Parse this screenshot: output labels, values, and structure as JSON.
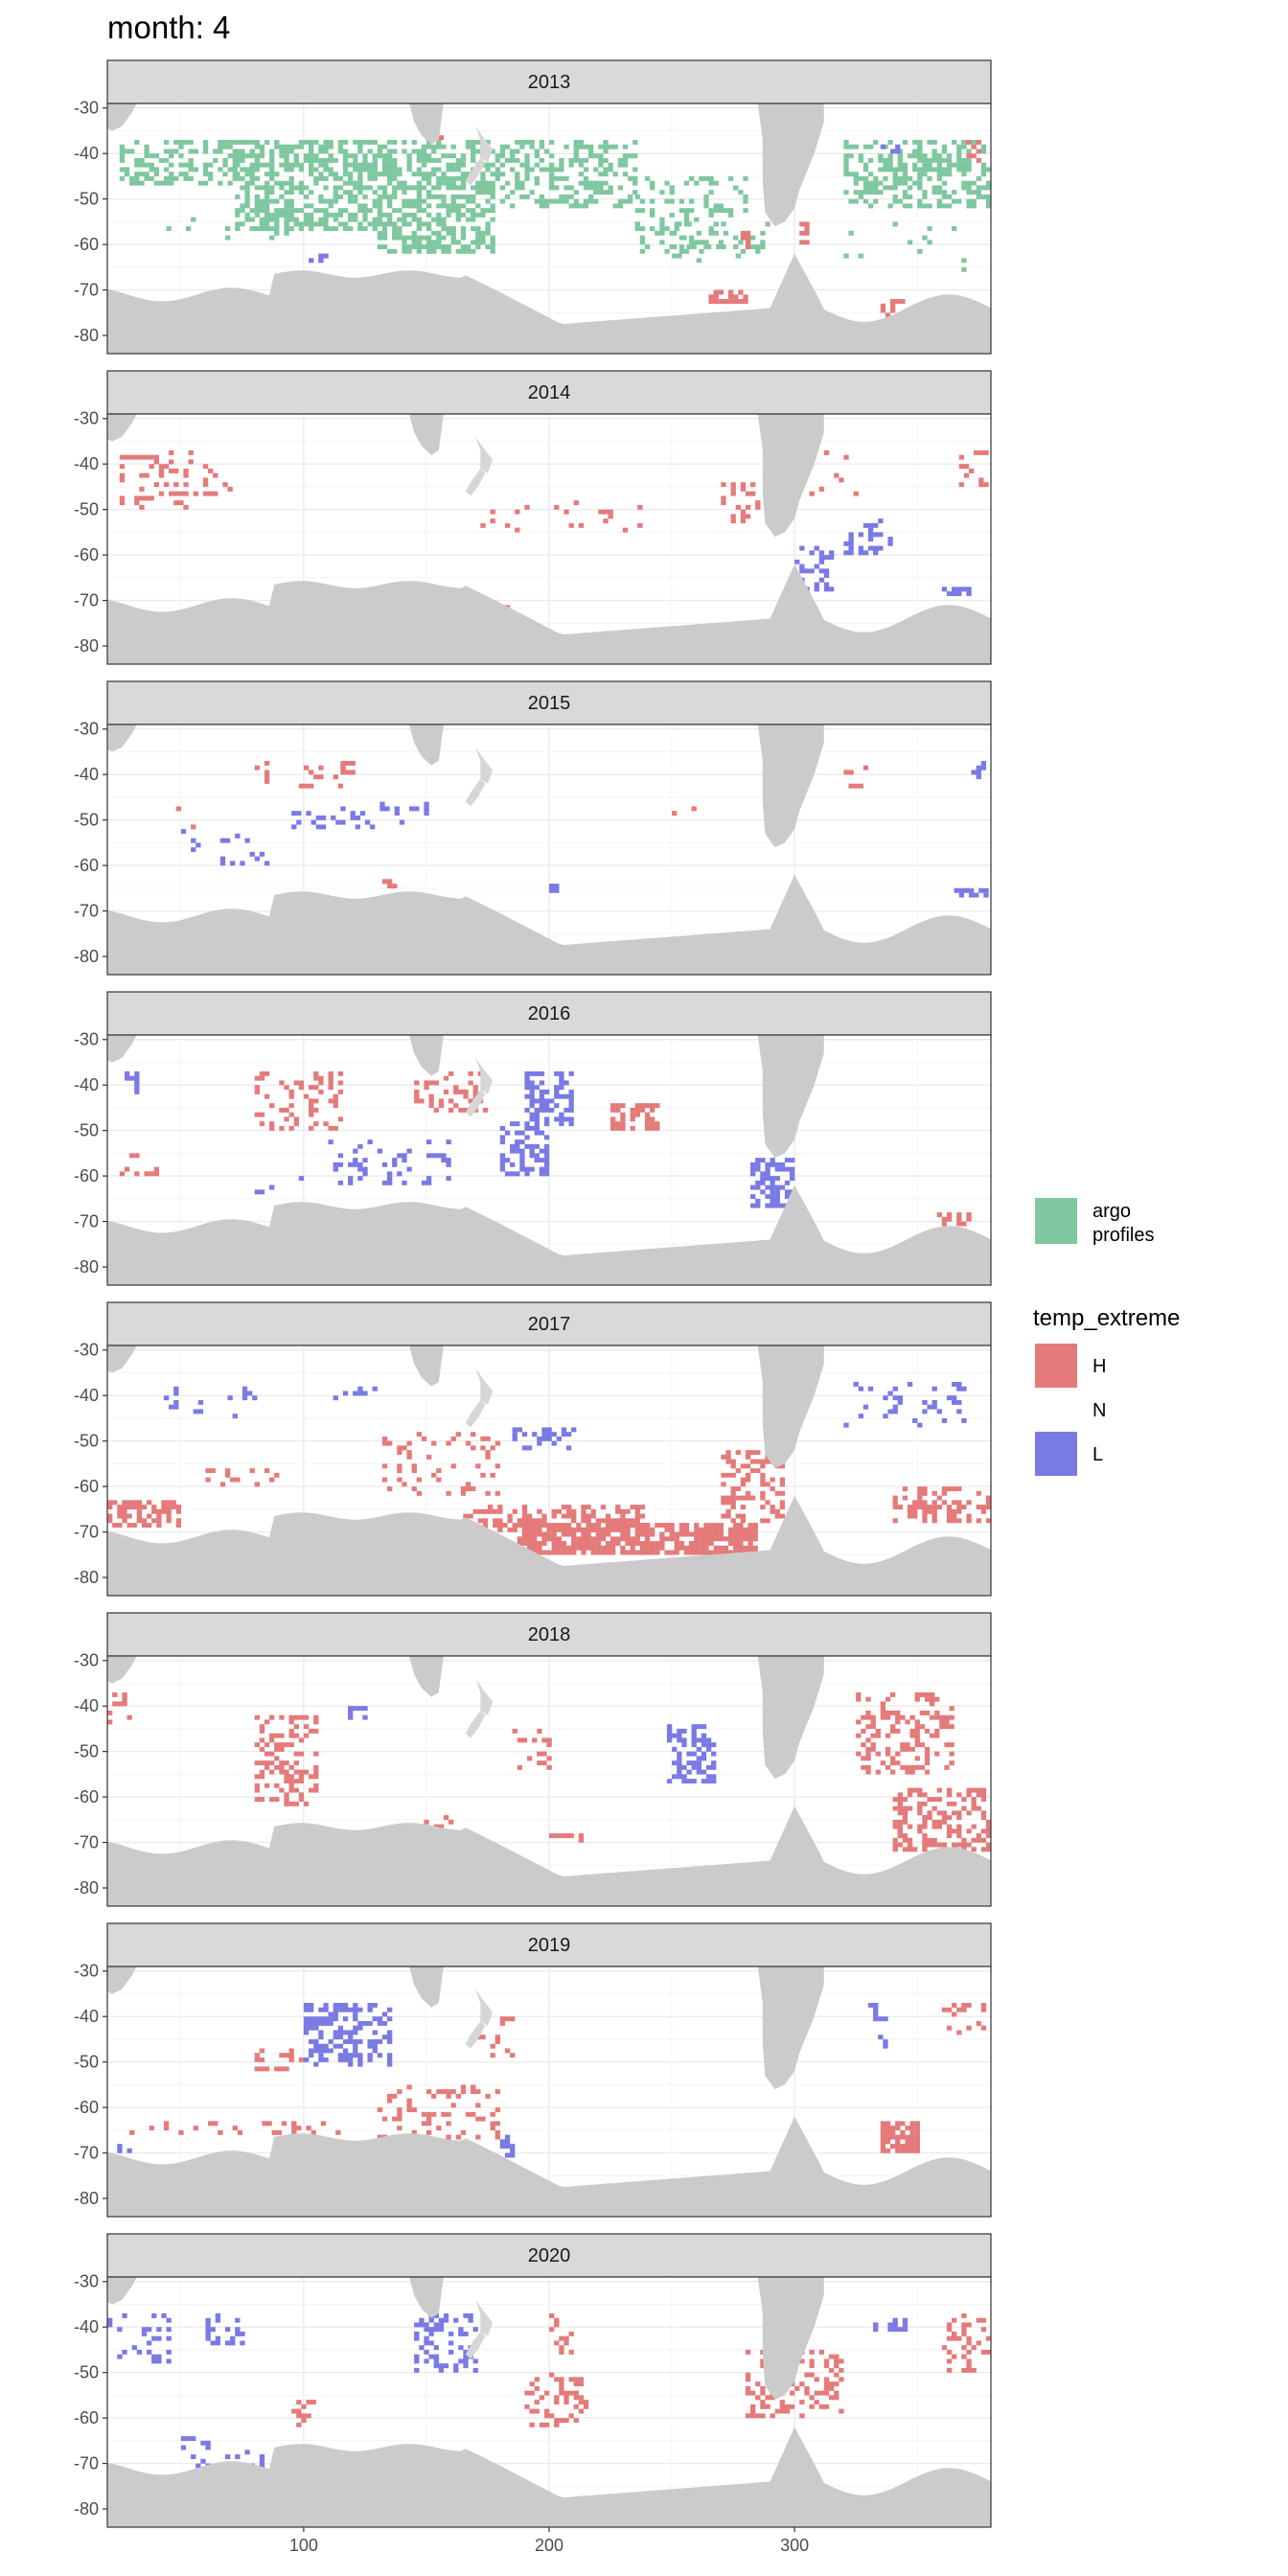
{
  "title": "month: 4",
  "chart_data": {
    "type": "heatmap",
    "title": "month: 4",
    "xlabel": "",
    "ylabel": "",
    "xlim": [
      20,
      380
    ],
    "ylim": [
      -84,
      -29
    ],
    "x_ticks": [
      "100",
      "200",
      "300"
    ],
    "x_tick_values": [
      100,
      200,
      300
    ],
    "y_ticks": [
      "-30",
      "-40",
      "-50",
      "-60",
      "-70",
      "-80"
    ],
    "y_tick_values": [
      -30,
      -40,
      -50,
      -60,
      -70,
      -80
    ],
    "grid": true,
    "facet_var": "year",
    "legend_position": "right",
    "colors": {
      "argo": "#7fc89f",
      "H": "#e57a7a",
      "L": "#7a7ae5",
      "land": "#cbcbcb"
    },
    "legend": {
      "fill": {
        "title": "",
        "entries": [
          {
            "key": "argo",
            "label": "argo\nprofiles",
            "color": "#7fc89f"
          }
        ]
      },
      "temp_extreme": {
        "title": "temp_extreme",
        "entries": [
          {
            "key": "H",
            "label": "H",
            "color": "#e57a7a"
          },
          {
            "key": "N",
            "label": "N",
            "color": null
          },
          {
            "key": "L",
            "label": "L",
            "color": "#7a7ae5"
          }
        ]
      }
    },
    "panels": [
      {
        "label": "2013",
        "argo": [
          [
            25,
            72,
            -47,
            -37,
            0.45
          ],
          [
            72,
            130,
            -57,
            -37,
            0.55
          ],
          [
            130,
            178,
            -62,
            -37,
            0.5
          ],
          [
            178,
            235,
            -52,
            -37,
            0.4
          ],
          [
            235,
            280,
            -62,
            -45,
            0.25
          ],
          [
            320,
            380,
            -52,
            -37,
            0.45
          ],
          [
            40,
            110,
            -60,
            -52,
            0.08
          ],
          [
            250,
            290,
            -64,
            -55,
            0.15
          ],
          [
            320,
            370,
            -66,
            -55,
            0.05
          ]
        ],
        "H": [
          [
            278,
            282,
            -61,
            -56,
            0.5
          ],
          [
            300,
            305,
            -60,
            -55,
            0.4
          ],
          [
            265,
            280,
            -73,
            -70,
            0.6
          ],
          [
            335,
            345,
            -78,
            -72,
            0.5
          ],
          [
            153,
            156,
            -38,
            -36,
            0.5
          ],
          [
            370,
            378,
            -42,
            -37,
            0.3
          ]
        ],
        "L": [
          [
            100,
            110,
            -64,
            -62,
            0.4
          ],
          [
            335,
            350,
            -40,
            -38,
            0.3
          ]
        ]
      },
      {
        "label": "2014",
        "argo": [],
        "H": [
          [
            25,
            55,
            -50,
            -37,
            0.3
          ],
          [
            55,
            70,
            -47,
            -40,
            0.2
          ],
          [
            270,
            285,
            -53,
            -44,
            0.3
          ],
          [
            300,
            330,
            -48,
            -37,
            0.1
          ],
          [
            170,
            250,
            -55,
            -48,
            0.06
          ],
          [
            180,
            185,
            -72,
            -70,
            0.6
          ],
          [
            162,
            168,
            -79,
            -76,
            0.4
          ],
          [
            367,
            378,
            -46,
            -37,
            0.2
          ]
        ],
        "L": [
          [
            320,
            340,
            -60,
            -52,
            0.25
          ],
          [
            300,
            315,
            -68,
            -58,
            0.35
          ],
          [
            360,
            372,
            -69,
            -67,
            0.4
          ]
        ]
      },
      {
        "label": "2015",
        "argo": [],
        "H": [
          [
            80,
            115,
            -43,
            -37,
            0.15
          ],
          [
            115,
            120,
            -40,
            -37,
            0.4
          ],
          [
            250,
            260,
            -49,
            -47,
            0.3
          ],
          [
            320,
            330,
            -43,
            -38,
            0.25
          ],
          [
            130,
            140,
            -65,
            -63,
            0.2
          ],
          [
            185,
            195,
            -79,
            -77,
            0.7
          ],
          [
            40,
            55,
            -53,
            -47,
            0.05
          ]
        ],
        "L": [
          [
            95,
            150,
            -52,
            -46,
            0.2
          ],
          [
            50,
            85,
            -60,
            -52,
            0.12
          ],
          [
            190,
            205,
            -66,
            -64,
            0.3
          ],
          [
            365,
            378,
            -67,
            -65,
            0.5
          ],
          [
            370,
            378,
            -41,
            -37,
            0.3
          ]
        ]
      },
      {
        "label": "2016",
        "argo": [],
        "H": [
          [
            80,
            115,
            -50,
            -37,
            0.3
          ],
          [
            145,
            175,
            -46,
            -37,
            0.3
          ],
          [
            225,
            245,
            -50,
            -44,
            0.6
          ],
          [
            25,
            40,
            -60,
            -55,
            0.2
          ],
          [
            358,
            372,
            -71,
            -68,
            0.5
          ],
          [
            195,
            200,
            -79,
            -77,
            0.6
          ]
        ],
        "L": [
          [
            190,
            210,
            -49,
            -37,
            0.5
          ],
          [
            180,
            200,
            -60,
            -48,
            0.5
          ],
          [
            110,
            160,
            -62,
            -52,
            0.25
          ],
          [
            282,
            300,
            -67,
            -56,
            0.55
          ],
          [
            25,
            40,
            -42,
            -37,
            0.2
          ],
          [
            80,
            100,
            -64,
            -60,
            0.2
          ]
        ],
        "_x": 0
      },
      {
        "label": "2017",
        "argo": [],
        "H": [
          [
            20,
            50,
            -69,
            -63,
            0.6
          ],
          [
            185,
            285,
            -75,
            -68,
            0.75
          ],
          [
            165,
            240,
            -70,
            -64,
            0.4
          ],
          [
            270,
            295,
            -68,
            -52,
            0.4
          ],
          [
            130,
            180,
            -62,
            -48,
            0.15
          ],
          [
            340,
            380,
            -68,
            -60,
            0.4
          ],
          [
            60,
            90,
            -60,
            -56,
            0.2
          ]
        ],
        "L": [
          [
            35,
            80,
            -45,
            -38,
            0.15
          ],
          [
            185,
            210,
            -52,
            -47,
            0.3
          ],
          [
            320,
            370,
            -47,
            -37,
            0.15
          ],
          [
            110,
            130,
            -42,
            -38,
            0.2
          ]
        ]
      },
      {
        "label": "2018",
        "argo": [],
        "H": [
          [
            80,
            105,
            -62,
            -42,
            0.35
          ],
          [
            325,
            365,
            -55,
            -37,
            0.3
          ],
          [
            340,
            380,
            -72,
            -58,
            0.45
          ],
          [
            185,
            200,
            -55,
            -45,
            0.25
          ],
          [
            145,
            160,
            -68,
            -64,
            0.3
          ],
          [
            200,
            215,
            -70,
            -68,
            0.5
          ],
          [
            165,
            170,
            -76,
            -74,
            0.6
          ],
          [
            20,
            30,
            -44,
            -37,
            0.2
          ]
        ],
        "L": [
          [
            248,
            268,
            -57,
            -44,
            0.5
          ],
          [
            118,
            125,
            -43,
            -40,
            0.4
          ]
        ]
      },
      {
        "label": "2019",
        "argo": [],
        "H": [
          [
            25,
            115,
            -66,
            -63,
            0.2
          ],
          [
            130,
            180,
            -67,
            -55,
            0.25
          ],
          [
            335,
            350,
            -70,
            -63,
            0.8
          ],
          [
            360,
            380,
            -45,
            -37,
            0.2
          ],
          [
            170,
            185,
            -50,
            -40,
            0.15
          ],
          [
            80,
            100,
            -52,
            -45,
            0.2
          ]
        ],
        "L": [
          [
            100,
            135,
            -51,
            -37,
            0.5
          ],
          [
            180,
            185,
            -71,
            -66,
            0.5
          ],
          [
            20,
            30,
            -71,
            -68,
            0.4
          ],
          [
            330,
            340,
            -47,
            -37,
            0.2
          ]
        ]
      },
      {
        "label": "2020",
        "argo": [],
        "H": [
          [
            190,
            215,
            -62,
            -50,
            0.35
          ],
          [
            200,
            210,
            -46,
            -37,
            0.35
          ],
          [
            280,
            320,
            -60,
            -45,
            0.35
          ],
          [
            360,
            380,
            -50,
            -37,
            0.25
          ],
          [
            95,
            105,
            -62,
            -56,
            0.3
          ]
        ],
        "L": [
          [
            145,
            170,
            -50,
            -37,
            0.35
          ],
          [
            20,
            45,
            -48,
            -37,
            0.2
          ],
          [
            60,
            75,
            -44,
            -37,
            0.3
          ],
          [
            50,
            110,
            -72,
            -64,
            0.12
          ],
          [
            330,
            345,
            -42,
            -38,
            0.3
          ]
        ]
      }
    ]
  }
}
